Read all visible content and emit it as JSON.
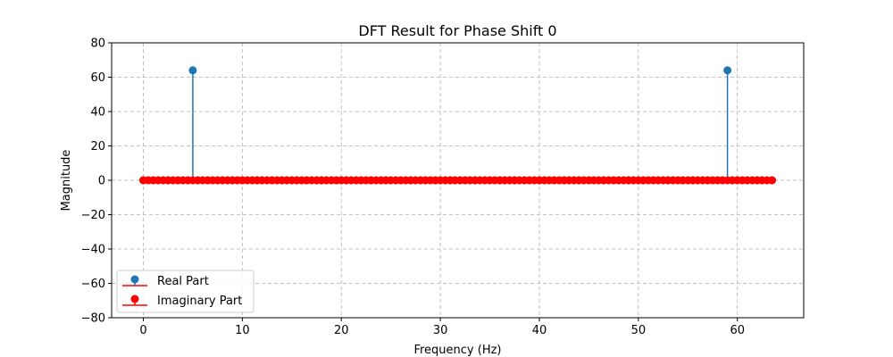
{
  "chart_data": {
    "type": "stem",
    "title": "DFT Result for Phase Shift 0",
    "xlabel": "Frequency (Hz)",
    "ylabel": "Magnitude",
    "xlim": [
      -3.2,
      66.7
    ],
    "ylim": [
      -80,
      80
    ],
    "xticks": [
      0,
      10,
      20,
      30,
      40,
      50,
      60
    ],
    "yticks": [
      -80,
      -60,
      -40,
      -20,
      0,
      20,
      40,
      60,
      80
    ],
    "grid": true,
    "legend_position": "lower-left",
    "x": {
      "start": 0,
      "step": 0.5,
      "count": 128
    },
    "series": [
      {
        "name": "Real Part",
        "color": "#1f77b4",
        "default_value": 0,
        "nonzero": [
          {
            "x": 5,
            "y": 64
          },
          {
            "x": 59,
            "y": 64
          }
        ]
      },
      {
        "name": "Imaginary Part",
        "color": "#ff0000",
        "default_value": 0,
        "nonzero": []
      }
    ]
  }
}
